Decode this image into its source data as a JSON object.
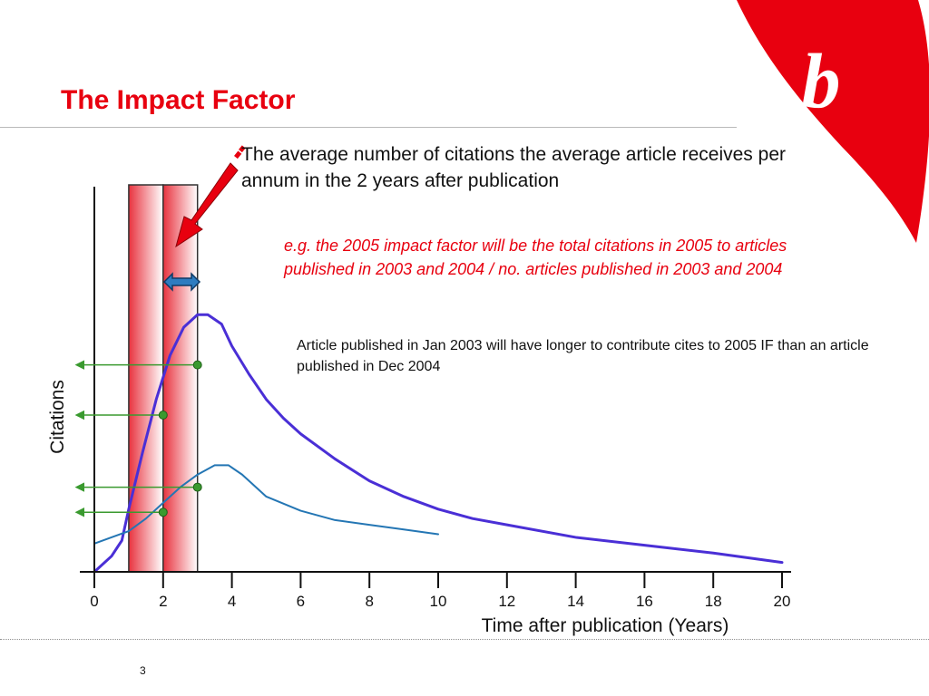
{
  "slide": {
    "title": "The Impact Factor",
    "page_number": "3",
    "logo_letter": "b",
    "brand_color": "#e8000f"
  },
  "callouts": {
    "definition": "The average number of citations the average article receives per annum in the 2 years after publication",
    "example": "e.g. the 2005 impact factor will be the total citations in 2005 to articles published in 2003 and 2004 / no. articles published in 2003 and 2004",
    "note": "Article published in Jan 2003 will have longer to contribute cites to 2005 IF than an article published in Dec 2004"
  },
  "chart_data": {
    "type": "line",
    "xlabel": "Time after publication (Years)",
    "ylabel": "Citations",
    "xlim": [
      0,
      20
    ],
    "ylim": [
      0,
      100
    ],
    "xticks": [
      0,
      2,
      4,
      6,
      8,
      10,
      12,
      14,
      16,
      18,
      20
    ],
    "y_ticks_labelled": false,
    "grid": false,
    "series": [
      {
        "color": "#4a2fd6",
        "x": [
          0,
          0.5,
          0.8,
          1,
          1.4,
          1.8,
          2.2,
          2.6,
          3,
          3.3,
          3.7,
          4,
          4.5,
          5,
          5.5,
          6,
          7,
          8,
          9,
          10,
          11,
          12,
          14,
          16,
          18,
          20
        ],
        "y": [
          0,
          5,
          10,
          20,
          38,
          55,
          69,
          78,
          82,
          82,
          79,
          72,
          63,
          55,
          49,
          44,
          36,
          29,
          24,
          20,
          17,
          15,
          11,
          8.5,
          6,
          3
        ]
      },
      {
        "color": "#2476b4",
        "x": [
          0,
          1,
          1.5,
          2,
          2.5,
          3,
          3.5,
          3.9,
          4.3,
          5,
          6,
          7,
          8,
          9,
          10
        ],
        "y": [
          9,
          13,
          17,
          22,
          27,
          31,
          34,
          34,
          31,
          24,
          19.5,
          16.5,
          15,
          13.5,
          12
        ]
      }
    ],
    "highlight_bands": [
      {
        "x0": 1,
        "x1": 2
      },
      {
        "x0": 2,
        "x1": 3
      }
    ],
    "markers": [
      {
        "x": 3,
        "y": 66
      },
      {
        "x": 2,
        "y": 50
      },
      {
        "x": 3,
        "y": 27
      },
      {
        "x": 2,
        "y": 19
      }
    ],
    "marker_color": "#3a9a2f"
  }
}
